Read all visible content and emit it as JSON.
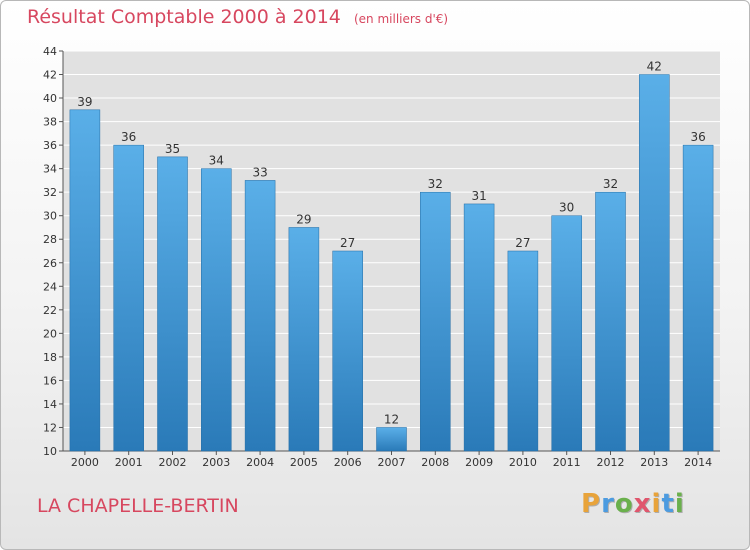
{
  "header": {
    "title": "Résultat Comptable 2000 à 2014",
    "unit": "(en milliers d'€)"
  },
  "footer": {
    "town": "LA CHAPELLE-BERTIN",
    "brand": "Proxiti"
  },
  "colors": {
    "title": "#d7475f",
    "bar_top": "#5aafe8",
    "bar_bottom": "#2a7ab8",
    "grid": "#ffffff",
    "plot_bg": "#e1e1e1",
    "logo_letters": [
      "#e8a33a",
      "#4c9be0",
      "#6ab04c",
      "#e0566d",
      "#e8a33a",
      "#4c9be0",
      "#6ab04c"
    ]
  },
  "chart_data": {
    "type": "bar",
    "title": "Résultat Comptable 2000 à 2014",
    "xlabel": "",
    "ylabel": "",
    "categories": [
      "2000",
      "2001",
      "2002",
      "2003",
      "2004",
      "2005",
      "2006",
      "2007",
      "2008",
      "2009",
      "2010",
      "2011",
      "2012",
      "2013",
      "2014"
    ],
    "values": [
      39,
      36,
      35,
      34,
      33,
      29,
      27,
      12,
      32,
      31,
      27,
      30,
      32,
      42,
      36
    ],
    "ylim": [
      10,
      44
    ],
    "yticks": [
      10,
      12,
      14,
      16,
      18,
      20,
      22,
      24,
      26,
      28,
      30,
      32,
      34,
      36,
      38,
      40,
      42,
      44
    ],
    "grid": true,
    "legend": "none",
    "data_labels": true
  }
}
